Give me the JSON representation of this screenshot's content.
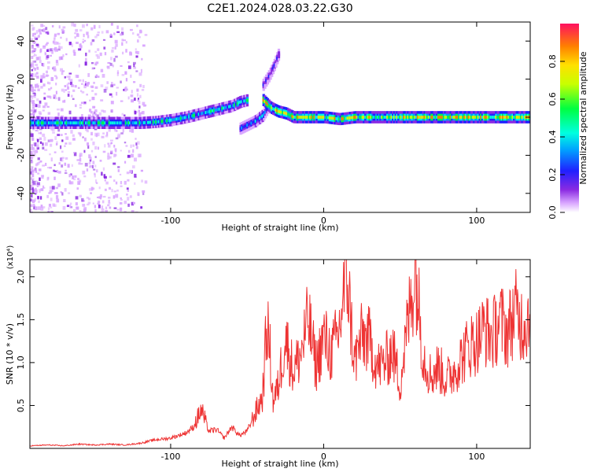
{
  "title": "C2E1.2024.028.03.22.G30",
  "chart_data": [
    {
      "type": "heatmap",
      "xlabel": "Height of straight line (km)",
      "ylabel": "Frequency (Hz)",
      "xlim": [
        -192,
        135
      ],
      "ylim": [
        -50,
        50
      ],
      "x_ticks": [
        -100,
        0,
        100
      ],
      "y_ticks": [
        -40,
        -20,
        0,
        20,
        40
      ],
      "colorbar": {
        "label": "Normalized spectral amplitude",
        "range": [
          0,
          1
        ],
        "ticks": [
          "0.0",
          "0.2",
          "0.4",
          "0.6",
          "0.8"
        ],
        "colormap": [
          "#ffffff",
          "#d9a6ff",
          "#8a2be2",
          "#2020ff",
          "#00a0ff",
          "#00ffe0",
          "#00ff40",
          "#c8ff00",
          "#ffe000",
          "#ff8000",
          "#ff1030"
        ]
      },
      "ridges": [
        {
          "x": [
            -192,
            -170,
            -150,
            -130,
            -120,
            -110,
            -100,
            -90,
            -80,
            -70,
            -60,
            -55,
            -50
          ],
          "freq": [
            -3,
            -3,
            -3,
            -3,
            -3,
            -2.5,
            -1.5,
            0,
            2,
            4,
            6,
            8,
            9
          ],
          "amplitude": 0.55
        },
        {
          "x": [
            -55,
            -50,
            -45,
            -40,
            -37
          ],
          "freq": [
            -6,
            -4,
            -2,
            1,
            5
          ],
          "amplitude": 0.45
        },
        {
          "x": [
            -40,
            -36,
            -33,
            -30
          ],
          "freq": [
            17,
            22,
            27,
            33
          ],
          "amplitude": 0.3
        },
        {
          "x": [
            -40,
            -35,
            -30,
            -25,
            -20,
            -10,
            0,
            10,
            20,
            30,
            40,
            50,
            60,
            80,
            100,
            120,
            135
          ],
          "freq": [
            9,
            5,
            3,
            2,
            0,
            0,
            0,
            -1,
            0,
            0,
            0,
            0,
            0,
            0,
            0,
            0,
            0
          ],
          "amplitude": 0.8
        }
      ]
    },
    {
      "type": "line",
      "xlabel": "Height of straight line (km)",
      "ylabel": "SNR (10 * v/v)",
      "y_multiplier": "(x10⁴)",
      "xlim": [
        -192,
        135
      ],
      "ylim": [
        0,
        2.2
      ],
      "x_ticks": [
        -100,
        0,
        100
      ],
      "y_ticks": [
        "0.5",
        "1.0",
        "1.5",
        "2.0"
      ],
      "color": "#ee3333",
      "x": [
        -192,
        -180,
        -170,
        -160,
        -150,
        -140,
        -130,
        -120,
        -110,
        -100,
        -90,
        -85,
        -80,
        -75,
        -70,
        -65,
        -60,
        -55,
        -50,
        -45,
        -40,
        -37,
        -35,
        -33,
        -30,
        -25,
        -20,
        -15,
        -10,
        -5,
        0,
        5,
        10,
        15,
        20,
        25,
        30,
        35,
        40,
        45,
        50,
        55,
        60,
        65,
        70,
        75,
        80,
        85,
        90,
        95,
        100,
        105,
        110,
        115,
        120,
        125,
        130,
        135
      ],
      "y": [
        0.03,
        0.04,
        0.03,
        0.05,
        0.04,
        0.05,
        0.04,
        0.06,
        0.1,
        0.12,
        0.18,
        0.25,
        0.45,
        0.2,
        0.22,
        0.12,
        0.25,
        0.15,
        0.2,
        0.4,
        0.6,
        1.45,
        1.1,
        0.55,
        0.7,
        1.3,
        0.9,
        1.1,
        1.5,
        0.95,
        1.3,
        1.1,
        1.35,
        2.1,
        1.0,
        1.3,
        1.25,
        0.95,
        1.0,
        1.15,
        0.75,
        1.45,
        2.1,
        1.1,
        0.85,
        0.95,
        0.8,
        0.9,
        1.05,
        1.2,
        1.25,
        1.4,
        1.3,
        1.5,
        1.35,
        1.6,
        1.45,
        1.55
      ]
    }
  ]
}
